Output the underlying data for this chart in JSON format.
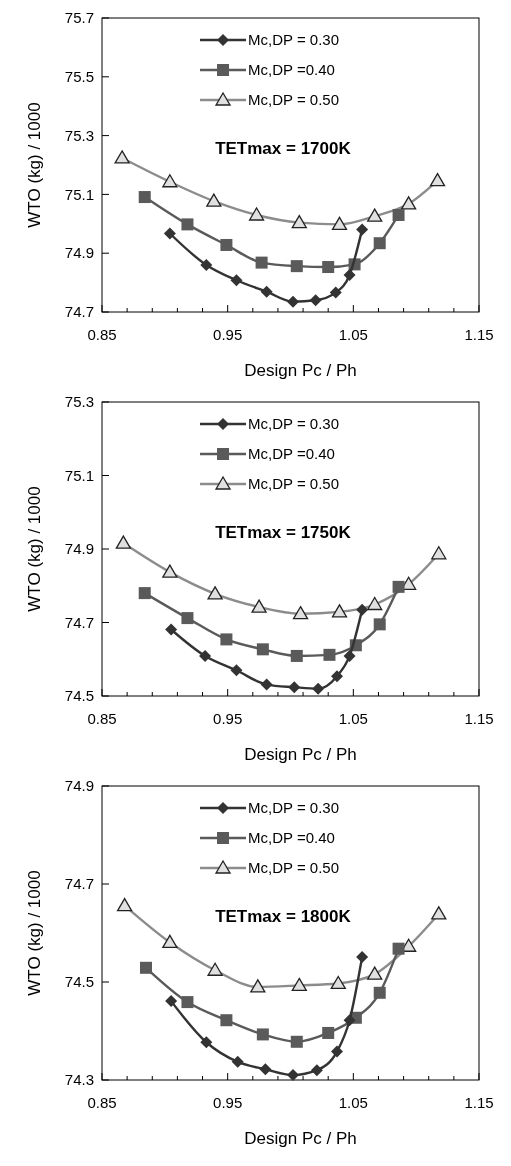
{
  "chart_data": [
    {
      "type": "line",
      "title": "TETmax = 1700K",
      "xlabel": "Design Pc / Ph",
      "ylabel": "WTO (kg) / 1000",
      "xlim": [
        0.85,
        1.15
      ],
      "ylim": [
        74.7,
        75.7
      ],
      "xticks": [
        0.85,
        {
          "value": 0.87,
          "label": null
        },
        {
          "value": 0.89,
          "label": null
        },
        {
          "value": 0.91,
          "label": null
        },
        {
          "value": 0.93,
          "label": null
        },
        0.95,
        {
          "value": 0.97,
          "label": null
        },
        {
          "value": 0.99,
          "label": null
        },
        {
          "value": 1.01,
          "label": null
        },
        {
          "value": 1.03,
          "label": null
        },
        1.05,
        {
          "value": 1.07,
          "label": null
        },
        {
          "value": 1.09,
          "label": null
        },
        {
          "value": 1.11,
          "label": null
        },
        {
          "value": 1.13,
          "label": null
        },
        1.15
      ],
      "yticks": [
        74.7,
        74.9,
        75.1,
        75.3,
        75.5,
        75.7
      ],
      "grid": false,
      "legend": "top",
      "line_style": "solid",
      "series": [
        {
          "name": "Mc,DP = 0.30",
          "color": "#333333",
          "marker": "diamond",
          "x": [
            0.904,
            0.933,
            0.957,
            0.981,
            1.002,
            1.02,
            1.036,
            1.047,
            1.057
          ],
          "values": [
            74.967,
            74.86,
            74.808,
            74.769,
            74.735,
            74.74,
            74.766,
            74.826,
            74.981
          ]
        },
        {
          "name": "Mc,DP =0.40",
          "color": "#5a5a5a",
          "marker": "square",
          "x": [
            0.884,
            0.918,
            0.949,
            0.977,
            1.005,
            1.03,
            1.051,
            1.071,
            1.086
          ],
          "values": [
            75.091,
            74.998,
            74.928,
            74.868,
            74.856,
            74.853,
            74.862,
            74.934,
            75.03
          ]
        },
        {
          "name": "Mc,DP = 0.50",
          "color": "#8c8c8c",
          "marker": "triangle",
          "x": [
            0.866,
            0.904,
            0.939,
            0.973,
            1.007,
            1.039,
            1.067,
            1.094,
            1.117
          ],
          "values": [
            75.224,
            75.143,
            75.077,
            75.03,
            75.004,
            74.998,
            75.026,
            75.068,
            75.147
          ]
        }
      ]
    },
    {
      "type": "line",
      "title": "TETmax = 1750K",
      "xlabel": "Design Pc / Ph",
      "ylabel": "WTO (kg) / 1000",
      "xlim": [
        0.85,
        1.15
      ],
      "ylim": [
        74.5,
        75.3
      ],
      "xticks": [
        0.85,
        {
          "value": 0.87,
          "label": null
        },
        {
          "value": 0.89,
          "label": null
        },
        {
          "value": 0.91,
          "label": null
        },
        {
          "value": 0.93,
          "label": null
        },
        0.95,
        {
          "value": 0.97,
          "label": null
        },
        {
          "value": 0.99,
          "label": null
        },
        {
          "value": 1.01,
          "label": null
        },
        {
          "value": 1.03,
          "label": null
        },
        1.05,
        {
          "value": 1.07,
          "label": null
        },
        {
          "value": 1.09,
          "label": null
        },
        {
          "value": 1.11,
          "label": null
        },
        {
          "value": 1.13,
          "label": null
        },
        1.15
      ],
      "yticks": [
        74.5,
        74.7,
        74.9,
        75.1,
        75.3
      ],
      "grid": false,
      "legend": "top",
      "line_style": "solid",
      "series": [
        {
          "name": "Mc,DP = 0.30",
          "color": "#333333",
          "marker": "diamond",
          "x": [
            0.905,
            0.932,
            0.957,
            0.981,
            1.003,
            1.022,
            1.037,
            1.047,
            1.057
          ],
          "values": [
            74.681,
            74.609,
            74.57,
            74.531,
            74.524,
            74.52,
            74.554,
            74.609,
            74.735
          ]
        },
        {
          "name": "Mc,DP =0.40",
          "color": "#5a5a5a",
          "marker": "square",
          "x": [
            0.884,
            0.918,
            0.949,
            0.978,
            1.005,
            1.031,
            1.052,
            1.071,
            1.086
          ],
          "values": [
            74.78,
            74.712,
            74.654,
            74.627,
            74.609,
            74.612,
            74.638,
            74.695,
            74.797
          ]
        },
        {
          "name": "Mc,DP = 0.50",
          "color": "#8c8c8c",
          "marker": "triangle",
          "x": [
            0.867,
            0.904,
            0.94,
            0.975,
            1.008,
            1.039,
            1.067,
            1.094,
            1.118
          ],
          "values": [
            74.916,
            74.837,
            74.778,
            74.742,
            74.724,
            74.729,
            74.749,
            74.804,
            74.887
          ]
        }
      ]
    },
    {
      "type": "line",
      "title": "TETmax = 1800K",
      "xlabel": "Design Pc / Ph",
      "ylabel": "WTO (kg) / 1000",
      "xlim": [
        0.85,
        1.15
      ],
      "ylim": [
        74.3,
        74.9
      ],
      "xticks": [
        0.85,
        {
          "value": 0.87,
          "label": null
        },
        {
          "value": 0.89,
          "label": null
        },
        {
          "value": 0.91,
          "label": null
        },
        {
          "value": 0.93,
          "label": null
        },
        0.95,
        {
          "value": 0.97,
          "label": null
        },
        {
          "value": 0.99,
          "label": null
        },
        {
          "value": 1.01,
          "label": null
        },
        {
          "value": 1.03,
          "label": null
        },
        1.05,
        {
          "value": 1.07,
          "label": null
        },
        {
          "value": 1.09,
          "label": null
        },
        {
          "value": 1.11,
          "label": null
        },
        {
          "value": 1.13,
          "label": null
        },
        1.15
      ],
      "yticks": [
        74.3,
        74.5,
        74.7,
        74.9
      ],
      "grid": false,
      "legend": "top",
      "line_style": "solid",
      "series": [
        {
          "name": "Mc,DP = 0.30",
          "color": "#333333",
          "marker": "diamond",
          "x": [
            0.905,
            0.933,
            0.958,
            0.98,
            1.002,
            1.021,
            1.037,
            1.047,
            1.057
          ],
          "values": [
            74.461,
            74.377,
            74.337,
            74.322,
            74.31,
            74.32,
            74.358,
            74.422,
            74.551
          ]
        },
        {
          "name": "Mc,DP =0.40",
          "color": "#5a5a5a",
          "marker": "square",
          "x": [
            0.885,
            0.918,
            0.949,
            0.978,
            1.005,
            1.03,
            1.052,
            1.071,
            1.086
          ],
          "values": [
            74.529,
            74.459,
            74.422,
            74.393,
            74.378,
            74.396,
            74.427,
            74.478,
            74.568
          ]
        },
        {
          "name": "Mc,DP = 0.50",
          "color": "#8c8c8c",
          "marker": "triangle",
          "x": [
            0.868,
            0.904,
            0.94,
            0.974,
            1.007,
            1.038,
            1.067,
            1.094,
            1.118
          ],
          "values": [
            74.656,
            74.581,
            74.524,
            74.49,
            74.493,
            74.497,
            74.516,
            74.573,
            74.639
          ]
        }
      ]
    }
  ]
}
